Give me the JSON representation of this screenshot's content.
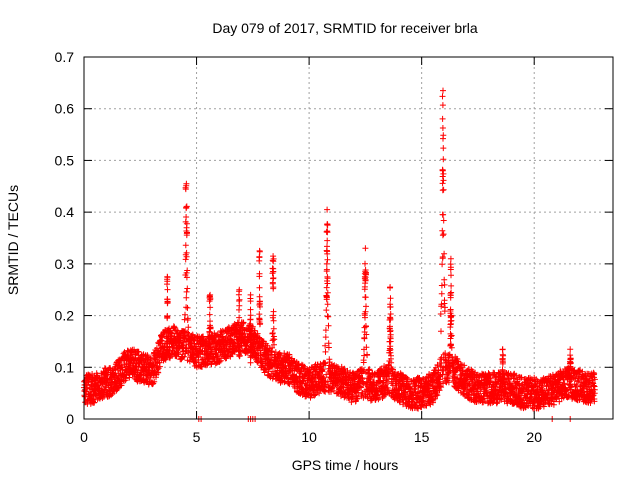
{
  "chart_data": {
    "type": "scatter",
    "title": "Day 079 of 2017, SRMTID for receiver brla",
    "xlabel": "GPS time / hours",
    "ylabel": "SRMTID / TECUs",
    "xlim": [
      0,
      23.5
    ],
    "ylim": [
      0,
      0.7
    ],
    "xticks": [
      "0",
      "5",
      "10",
      "15",
      "20"
    ],
    "yticks": [
      "0",
      "0.1",
      "0.2",
      "0.3",
      "0.4",
      "0.5",
      "0.6",
      "0.7"
    ],
    "grid": true,
    "marker": "+",
    "color": "#ff0000",
    "background_profile": [
      [
        0.0,
        0.055
      ],
      [
        0.5,
        0.06
      ],
      [
        1.0,
        0.07
      ],
      [
        1.5,
        0.085
      ],
      [
        2.0,
        0.11
      ],
      [
        2.5,
        0.1
      ],
      [
        3.0,
        0.09
      ],
      [
        3.5,
        0.14
      ],
      [
        4.0,
        0.15
      ],
      [
        4.5,
        0.14
      ],
      [
        5.0,
        0.13
      ],
      [
        5.5,
        0.13
      ],
      [
        6.0,
        0.14
      ],
      [
        6.5,
        0.15
      ],
      [
        7.0,
        0.16
      ],
      [
        7.5,
        0.15
      ],
      [
        8.0,
        0.12
      ],
      [
        8.5,
        0.1
      ],
      [
        9.0,
        0.1
      ],
      [
        9.5,
        0.08
      ],
      [
        10.0,
        0.07
      ],
      [
        10.5,
        0.08
      ],
      [
        11.0,
        0.08
      ],
      [
        11.5,
        0.07
      ],
      [
        12.0,
        0.06
      ],
      [
        12.5,
        0.07
      ],
      [
        13.0,
        0.06
      ],
      [
        13.5,
        0.08
      ],
      [
        14.0,
        0.06
      ],
      [
        14.5,
        0.05
      ],
      [
        15.0,
        0.05
      ],
      [
        15.5,
        0.06
      ],
      [
        16.0,
        0.1
      ],
      [
        16.5,
        0.09
      ],
      [
        17.0,
        0.07
      ],
      [
        17.5,
        0.06
      ],
      [
        18.0,
        0.06
      ],
      [
        18.5,
        0.06
      ],
      [
        19.0,
        0.06
      ],
      [
        19.5,
        0.05
      ],
      [
        20.0,
        0.05
      ],
      [
        20.5,
        0.05
      ],
      [
        21.0,
        0.06
      ],
      [
        21.5,
        0.07
      ],
      [
        22.0,
        0.065
      ],
      [
        22.5,
        0.06
      ]
    ],
    "noise_amplitude": 0.03,
    "sampling_step_hours": 0.006,
    "x_end": 22.7,
    "spikes": [
      {
        "x": 3.7,
        "peak": 0.275,
        "width": 0.05
      },
      {
        "x": 4.55,
        "peak": 0.455,
        "width": 0.13
      },
      {
        "x": 5.6,
        "peak": 0.24,
        "width": 0.1
      },
      {
        "x": 6.9,
        "peak": 0.25,
        "width": 0.1
      },
      {
        "x": 7.4,
        "peak": 0.24,
        "width": 0.06
      },
      {
        "x": 7.8,
        "peak": 0.325,
        "width": 0.06
      },
      {
        "x": 8.4,
        "peak": 0.315,
        "width": 0.1
      },
      {
        "x": 10.8,
        "peak": 0.405,
        "width": 0.1
      },
      {
        "x": 12.5,
        "peak": 0.33,
        "width": 0.1
      },
      {
        "x": 13.6,
        "peak": 0.255,
        "width": 0.08
      },
      {
        "x": 15.95,
        "peak": 0.635,
        "width": 0.1
      },
      {
        "x": 16.3,
        "peak": 0.31,
        "width": 0.08
      },
      {
        "x": 18.6,
        "peak": 0.135,
        "width": 0.06
      },
      {
        "x": 21.6,
        "peak": 0.135,
        "width": 0.08
      }
    ],
    "zero_points_x": [
      5.1,
      5.2,
      7.3,
      7.4,
      7.5,
      7.6,
      20.8,
      21.6
    ]
  }
}
